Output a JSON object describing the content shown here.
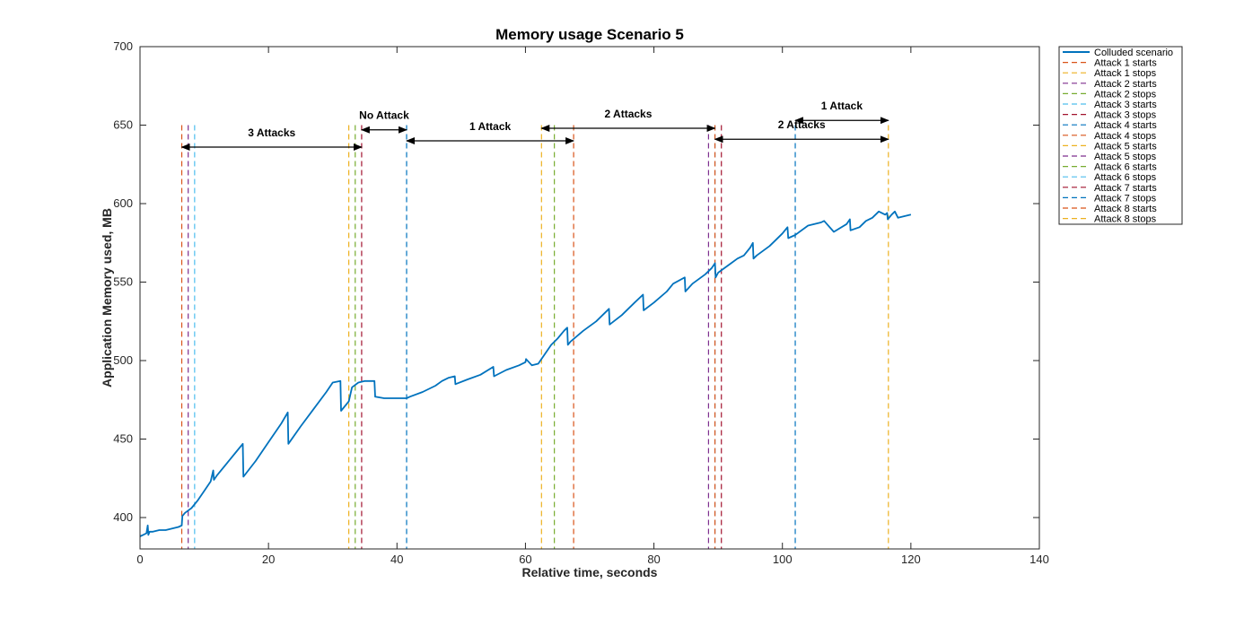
{
  "chart_data": {
    "type": "line",
    "title": "Memory usage Scenario 5",
    "xlabel": "Relative time, seconds",
    "ylabel": "Application Memory used, MB",
    "xlim": [
      0,
      140
    ],
    "ylim": [
      380,
      700
    ],
    "xticks": [
      0,
      20,
      40,
      60,
      80,
      100,
      120,
      140
    ],
    "yticks": [
      400,
      450,
      500,
      550,
      600,
      650,
      700
    ],
    "grid": false,
    "legend_position": "outside-top-right",
    "series": [
      {
        "name": "Colluded scenario",
        "color": "#0072bd",
        "x": [
          0,
          0.5,
          1.0,
          1.2,
          1.3,
          1.5,
          2,
          3,
          4,
          5,
          6,
          6.5,
          6.6,
          7,
          8,
          9,
          10,
          11,
          11.4,
          11.5,
          12,
          14,
          15,
          16,
          16.1,
          18,
          20,
          22,
          23,
          23.1,
          25,
          27,
          29,
          30,
          31.2,
          31.3,
          32.5,
          33,
          34,
          35,
          36,
          36.5,
          36.6,
          38,
          40,
          41.5,
          42,
          44,
          46,
          47,
          48,
          49,
          49.1,
          51,
          53,
          55,
          55.1,
          57,
          59,
          60,
          60.1,
          61,
          62,
          63,
          64,
          65,
          66,
          66.5,
          66.6,
          67,
          69,
          71,
          73,
          73.1,
          75,
          77,
          78.3,
          78.4,
          80,
          82,
          83,
          84.8,
          84.9,
          86,
          88,
          89,
          89.5,
          89.6,
          90,
          92,
          93,
          94,
          95,
          95.4,
          95.5,
          96,
          98,
          99,
          100,
          100.8,
          100.9,
          102,
          104,
          106,
          106.5,
          108,
          110,
          110.5,
          110.6,
          112,
          113,
          114,
          115,
          116,
          116.3,
          116.4,
          117,
          117.5,
          118,
          119,
          120
        ],
        "y": [
          388,
          389,
          390,
          395,
          389,
          391,
          391,
          392,
          392,
          393,
          394,
          395,
          401,
          403,
          406,
          411,
          417,
          423,
          430,
          424,
          427,
          437,
          442,
          447,
          426,
          436,
          448,
          460,
          467,
          447,
          458,
          469,
          480,
          486,
          487,
          468,
          474,
          483,
          486,
          487,
          487,
          487,
          477,
          476,
          476,
          476,
          477,
          480,
          484,
          487,
          489,
          490,
          485,
          488,
          491,
          496,
          490,
          494,
          497,
          499,
          501,
          497,
          498,
          504,
          510,
          514,
          519,
          521,
          510,
          512,
          519,
          525,
          533,
          523,
          529,
          537,
          542,
          532,
          537,
          544,
          549,
          553,
          544,
          549,
          555,
          559,
          562,
          553,
          556,
          562,
          565,
          567,
          572,
          575,
          565,
          567,
          573,
          577,
          581,
          585,
          578,
          580,
          586,
          588,
          589,
          582,
          587,
          590,
          583,
          585,
          589,
          591,
          595,
          593,
          594,
          590,
          593,
          595,
          591,
          592,
          593
        ]
      }
    ],
    "events": [
      {
        "name": "Attack 1 starts",
        "x": 6.5,
        "color": "#d95319"
      },
      {
        "name": "Attack 1 stops",
        "x": 32.5,
        "color": "#edb120"
      },
      {
        "name": "Attack 2 starts",
        "x": 7.5,
        "color": "#7e2f8e"
      },
      {
        "name": "Attack 2 stops",
        "x": 33.5,
        "color": "#77ac30"
      },
      {
        "name": "Attack 3 starts",
        "x": 8.5,
        "color": "#4dbeee"
      },
      {
        "name": "Attack 3 stops",
        "x": 34.5,
        "color": "#a2142f"
      },
      {
        "name": "Attack 4 starts",
        "x": 41.5,
        "color": "#0072bd"
      },
      {
        "name": "Attack 4 stops",
        "x": 67.5,
        "color": "#d95319"
      },
      {
        "name": "Attack 5 starts",
        "x": 62.5,
        "color": "#edb120"
      },
      {
        "name": "Attack 5 stops",
        "x": 88.5,
        "color": "#7e2f8e"
      },
      {
        "name": "Attack 6 starts",
        "x": 64.5,
        "color": "#77ac30"
      },
      {
        "name": "Attack 6 stops",
        "x": 89.5,
        "color": "#4dbeee"
      },
      {
        "name": "Attack 7 starts",
        "x": 90.5,
        "color": "#a2142f"
      },
      {
        "name": "Attack 7 stops",
        "x": 102,
        "color": "#0072bd"
      },
      {
        "name": "Attack 8 starts",
        "x": 89.5,
        "color": "#d95319"
      },
      {
        "name": "Attack 8 stops",
        "x": 116.5,
        "color": "#edb120"
      }
    ],
    "annotations": [
      {
        "text": "3 Attacks",
        "x1": 6.5,
        "x2": 34.5,
        "y": 636,
        "label_y": 643
      },
      {
        "text": "No Attack",
        "x1": 34.5,
        "x2": 41.5,
        "y": 647,
        "label_y": 654
      },
      {
        "text": "1 Attack",
        "x1": 41.5,
        "x2": 67.5,
        "y": 640,
        "label_y": 647
      },
      {
        "text": "2 Attacks",
        "x1": 62.5,
        "x2": 89.5,
        "y": 648,
        "label_y": 655
      },
      {
        "text": "2 Attacks",
        "x1": 89.5,
        "x2": 116.5,
        "y": 641,
        "label_y": 648
      },
      {
        "text": "1 Attack",
        "x1": 102,
        "x2": 116.5,
        "y": 653,
        "label_y": 660
      }
    ]
  }
}
